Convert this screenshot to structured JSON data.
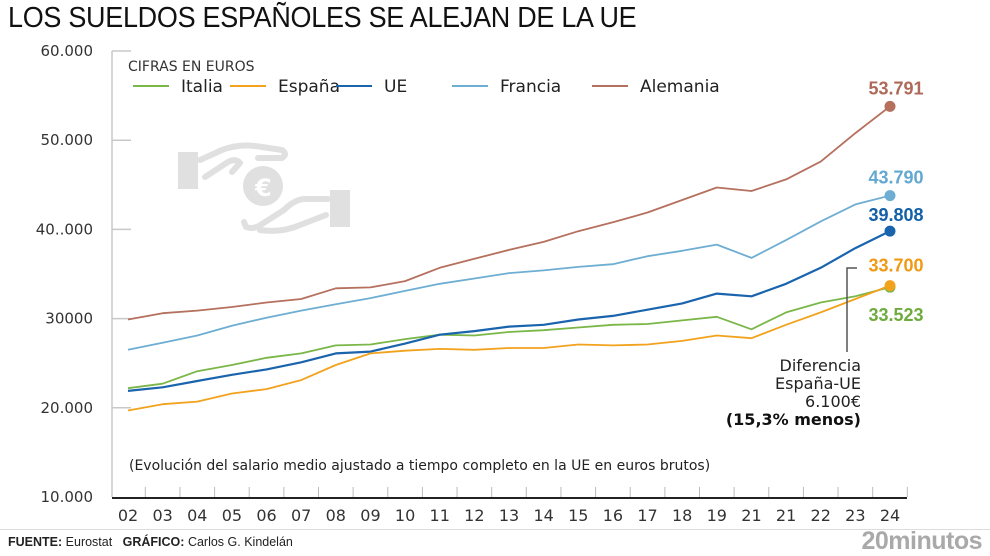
{
  "header": {
    "title": "LOS SUELDOS ESPAÑOLES SE ALEJAN DE LA UE"
  },
  "footer": {
    "source_label": "FUENTE:",
    "source_value": "Eurostat",
    "graphic_label": "GRÁFICO:",
    "graphic_value": "Carlos G. Kindelán",
    "brand": "20minutos"
  },
  "icons": {
    "illustration": "hands-euro-coin-icon"
  },
  "chart_data": {
    "type": "line",
    "title": "LOS SUELDOS ESPAÑOLES SE ALEJAN DE LA UE",
    "units_label": "CIFRAS EN EUROS",
    "xlabel": "",
    "ylabel": "",
    "note": "(Evolución del salario medio ajustado a tiempo completo en la UE en euros brutos)",
    "ylim": [
      10000,
      60000
    ],
    "yticks": [
      10000,
      20000,
      30000,
      40000,
      50000,
      60000
    ],
    "ytick_labels": [
      "10.000",
      "20.000",
      "30000",
      "40..000",
      "50.000",
      "60.000"
    ],
    "x": [
      "02",
      "03",
      "04",
      "05",
      "06",
      "07",
      "08",
      "09",
      "10",
      "11",
      "12",
      "13",
      "14",
      "15",
      "16",
      "17",
      "18",
      "19",
      "21",
      "21",
      "22",
      "23",
      "24"
    ],
    "grid": false,
    "legend_position": "top-left",
    "series": [
      {
        "name": "Italia",
        "color": "#7ab648",
        "values": [
          22200,
          22700,
          24100,
          24800,
          25600,
          26100,
          27000,
          27100,
          27700,
          28200,
          28100,
          28500,
          28700,
          29000,
          29300,
          29400,
          29800,
          30200,
          28800,
          30700,
          31800,
          32500,
          33523
        ],
        "end_label": "33.523",
        "end_label_color": "#6fab3f"
      },
      {
        "name": "España",
        "color": "#f2a21c",
        "values": [
          19700,
          20400,
          20700,
          21600,
          22100,
          23100,
          24800,
          26100,
          26400,
          26600,
          26500,
          26700,
          26700,
          27100,
          27000,
          27100,
          27500,
          28100,
          27800,
          29300,
          30700,
          32200,
          33700
        ],
        "end_label": "33.700",
        "end_label_color": "#f09a14"
      },
      {
        "name": "UE",
        "color": "#1a64ad",
        "values": [
          21900,
          22300,
          23000,
          23700,
          24300,
          25100,
          26100,
          26300,
          27200,
          28200,
          28600,
          29100,
          29300,
          29900,
          30300,
          31000,
          31700,
          32800,
          32500,
          33900,
          35700,
          37900,
          39808
        ],
        "end_label": "39.808",
        "end_label_color": "#1360a8"
      },
      {
        "name": "Francia",
        "color": "#6eaed2",
        "values": [
          26500,
          27300,
          28100,
          29200,
          30100,
          30900,
          31600,
          32300,
          33100,
          33900,
          34500,
          35100,
          35400,
          35800,
          36100,
          37000,
          37600,
          38300,
          36800,
          38800,
          40900,
          42800,
          43790
        ],
        "end_label": "43.790",
        "end_label_color": "#62a8d0"
      },
      {
        "name": "Alemania",
        "color": "#b5705e",
        "values": [
          29900,
          30600,
          30900,
          31300,
          31800,
          32200,
          33400,
          33500,
          34200,
          35700,
          36700,
          37700,
          38600,
          39800,
          40800,
          41900,
          43300,
          44700,
          44300,
          45600,
          47600,
          50800,
          53791
        ],
        "end_label": "53.791",
        "end_label_color": "#ad6a58"
      }
    ],
    "annotation": {
      "lines": [
        "Diferencia",
        "España-UE",
        "6.100€"
      ],
      "bold_line": "(15,3% menos)"
    }
  }
}
